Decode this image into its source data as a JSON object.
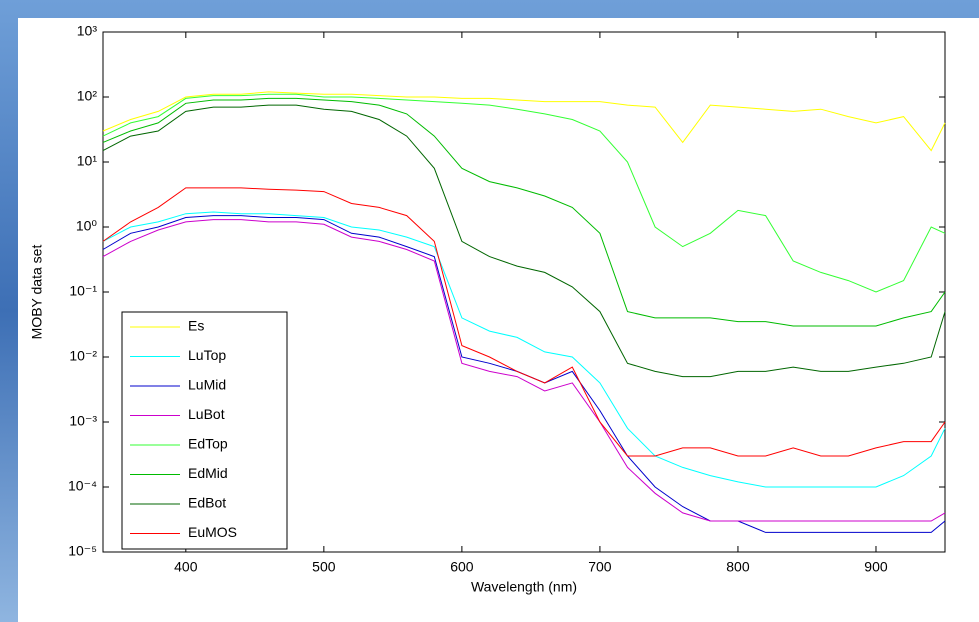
{
  "chart_data": {
    "type": "line",
    "ylabel": "MOBY data set",
    "xlabel": "Wavelength (nm)",
    "x": [
      340,
      360,
      380,
      400,
      420,
      440,
      460,
      480,
      500,
      520,
      540,
      560,
      580,
      600,
      620,
      640,
      660,
      680,
      700,
      720,
      740,
      760,
      780,
      800,
      820,
      840,
      860,
      880,
      900,
      920,
      940,
      950
    ],
    "xlim": [
      340,
      950
    ],
    "xticks": [
      400,
      500,
      600,
      700,
      800,
      900
    ],
    "ylim": [
      1e-05,
      1000
    ],
    "log_y": true,
    "yticks": [
      {
        "value": 1e-05,
        "label": "10⁻⁵"
      },
      {
        "value": 0.0001,
        "label": "10⁻⁴"
      },
      {
        "value": 0.001,
        "label": "10⁻³"
      },
      {
        "value": 0.01,
        "label": "10⁻²"
      },
      {
        "value": 0.1,
        "label": "10⁻¹"
      },
      {
        "value": 1,
        "label": "10⁰"
      },
      {
        "value": 10,
        "label": "10¹"
      },
      {
        "value": 100,
        "label": "10²"
      },
      {
        "value": 1000,
        "label": "10³"
      }
    ],
    "legend": "lower left",
    "series": [
      {
        "name": "Es",
        "color": "#ffff00",
        "values": [
          30,
          45,
          60,
          100,
          110,
          110,
          120,
          115,
          110,
          110,
          105,
          100,
          100,
          95,
          95,
          90,
          85,
          85,
          85,
          75,
          70,
          20,
          75,
          70,
          65,
          60,
          65,
          50,
          40,
          50,
          15,
          40
        ]
      },
      {
        "name": "LuTop",
        "color": "#00ffff",
        "values": [
          0.6,
          1,
          1.2,
          1.6,
          1.7,
          1.6,
          1.6,
          1.5,
          1.4,
          1,
          0.9,
          0.7,
          0.5,
          0.04,
          0.025,
          0.02,
          0.012,
          0.01,
          0.004,
          0.0008,
          0.0003,
          0.0002,
          0.00015,
          0.00012,
          0.0001,
          0.0001,
          0.0001,
          0.0001,
          0.0001,
          0.00015,
          0.0003,
          0.0008
        ]
      },
      {
        "name": "LuMid",
        "color": "#0000cc",
        "values": [
          0.45,
          0.8,
          1,
          1.4,
          1.5,
          1.5,
          1.4,
          1.4,
          1.3,
          0.8,
          0.7,
          0.5,
          0.35,
          0.01,
          0.008,
          0.006,
          0.004,
          0.006,
          0.0015,
          0.0003,
          0.0001,
          5e-05,
          3e-05,
          3e-05,
          2e-05,
          2e-05,
          2e-05,
          2e-05,
          2e-05,
          2e-05,
          2e-05,
          3e-05
        ]
      },
      {
        "name": "LuBot",
        "color": "#cc00cc",
        "values": [
          0.35,
          0.6,
          0.9,
          1.2,
          1.3,
          1.3,
          1.2,
          1.2,
          1.1,
          0.7,
          0.6,
          0.45,
          0.3,
          0.008,
          0.006,
          0.005,
          0.003,
          0.004,
          0.001,
          0.0002,
          8e-05,
          4e-05,
          3e-05,
          3e-05,
          3e-05,
          3e-05,
          3e-05,
          3e-05,
          3e-05,
          3e-05,
          3e-05,
          4e-05
        ]
      },
      {
        "name": "EdTop",
        "color": "#33ff33",
        "values": [
          25,
          40,
          50,
          95,
          105,
          105,
          110,
          110,
          100,
          100,
          95,
          90,
          85,
          80,
          75,
          65,
          55,
          45,
          30,
          10,
          1,
          0.5,
          0.8,
          1.8,
          1.5,
          0.3,
          0.2,
          0.15,
          0.1,
          0.15,
          1,
          0.8
        ]
      },
      {
        "name": "EdMid",
        "color": "#00bb00",
        "values": [
          20,
          30,
          40,
          80,
          90,
          90,
          95,
          95,
          90,
          85,
          75,
          55,
          25,
          8,
          5,
          4,
          3,
          2,
          0.8,
          0.05,
          0.04,
          0.04,
          0.04,
          0.035,
          0.035,
          0.03,
          0.03,
          0.03,
          0.03,
          0.04,
          0.05,
          0.1
        ]
      },
      {
        "name": "EdBot",
        "color": "#006600",
        "values": [
          15,
          25,
          30,
          60,
          70,
          70,
          75,
          75,
          65,
          60,
          45,
          25,
          8,
          0.6,
          0.35,
          0.25,
          0.2,
          0.12,
          0.05,
          0.008,
          0.006,
          0.005,
          0.005,
          0.006,
          0.006,
          0.007,
          0.006,
          0.006,
          0.007,
          0.008,
          0.01,
          0.05
        ]
      },
      {
        "name": "EuMOS",
        "color": "#ff0000",
        "values": [
          0.6,
          1.2,
          2,
          4,
          4,
          4,
          3.8,
          3.7,
          3.5,
          2.3,
          2,
          1.5,
          0.6,
          0.015,
          0.01,
          0.006,
          0.004,
          0.007,
          0.001,
          0.0003,
          0.0003,
          0.0004,
          0.0004,
          0.0003,
          0.0003,
          0.0004,
          0.0003,
          0.0003,
          0.0004,
          0.0005,
          0.0005,
          0.001
        ]
      }
    ]
  }
}
